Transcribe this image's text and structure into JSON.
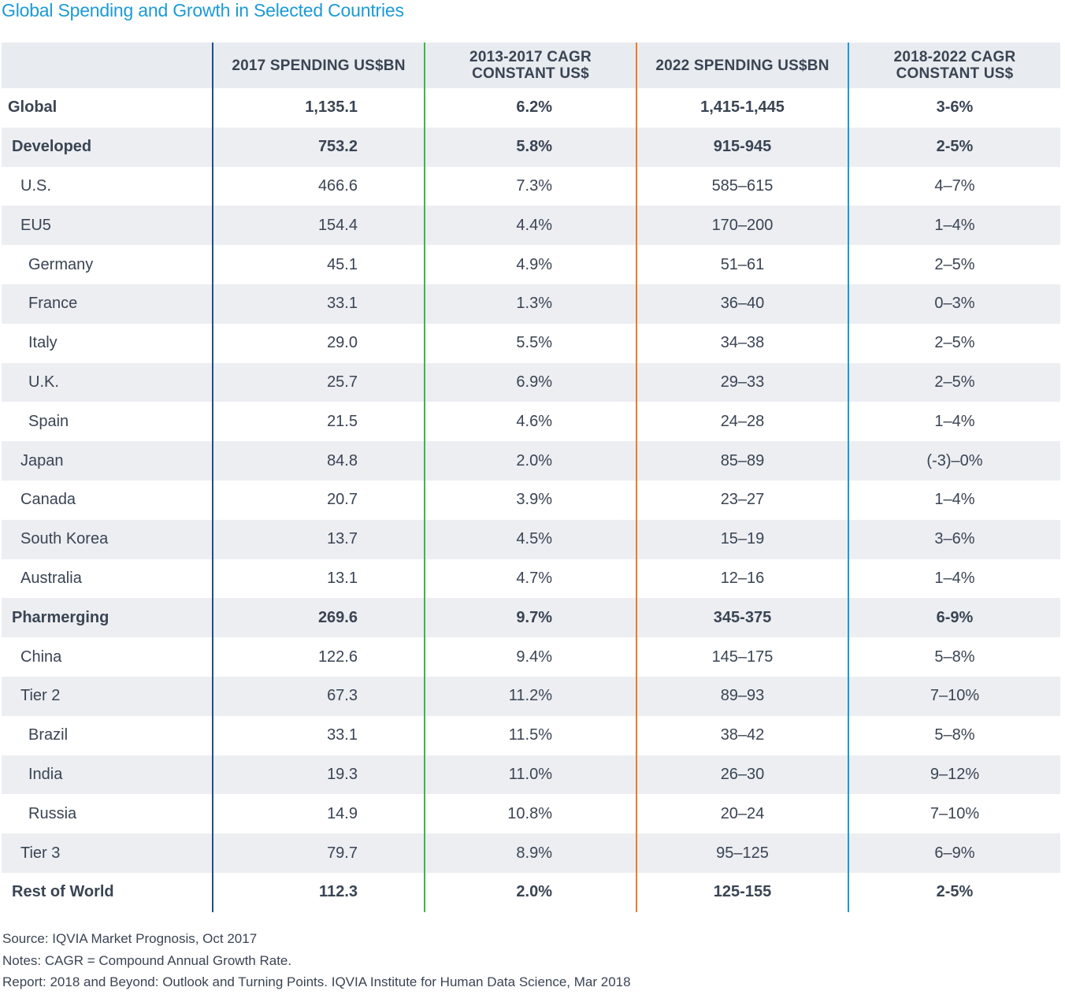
{
  "title": "Global Spending and Growth in Selected Countries",
  "chart_data": {
    "type": "table",
    "title": "Global Spending and Growth in Selected Countries",
    "columns": [
      "",
      "2017 SPENDING US$BN",
      "2013-2017 CAGR CONSTANT US$",
      "2022 SPENDING US$BN",
      "2018-2022 CAGR CONSTANT US$"
    ],
    "header": {
      "col1": "2017 SPENDING US$BN",
      "col2_line1": "2013-2017 CAGR",
      "col2_line2": "CONSTANT US$",
      "col3": "2022 SPENDING US$BN",
      "col4_line1": "2018-2022 CAGR",
      "col4_line2": "CONSTANT US$"
    },
    "rows": [
      {
        "label": "Global",
        "level": 0,
        "bold": true,
        "v1": "1,135.1",
        "v2": "6.2%",
        "v3": "1,415-1,445",
        "v4": "3-6%"
      },
      {
        "label": "Developed",
        "level": 1,
        "bold": true,
        "v1": "753.2",
        "v2": "5.8%",
        "v3": "915-945",
        "v4": "2-5%"
      },
      {
        "label": "U.S.",
        "level": 2,
        "bold": false,
        "v1": "466.6",
        "v2": "7.3%",
        "v3": "585–615",
        "v4": "4–7%"
      },
      {
        "label": "EU5",
        "level": 2,
        "bold": false,
        "v1": "154.4",
        "v2": "4.4%",
        "v3": "170–200",
        "v4": "1–4%"
      },
      {
        "label": "Germany",
        "level": 3,
        "bold": false,
        "v1": "45.1",
        "v2": "4.9%",
        "v3": "51–61",
        "v4": "2–5%"
      },
      {
        "label": "France",
        "level": 3,
        "bold": false,
        "v1": "33.1",
        "v2": "1.3%",
        "v3": "36–40",
        "v4": "0–3%"
      },
      {
        "label": "Italy",
        "level": 3,
        "bold": false,
        "v1": "29.0",
        "v2": "5.5%",
        "v3": "34–38",
        "v4": "2–5%"
      },
      {
        "label": "U.K.",
        "level": 3,
        "bold": false,
        "v1": "25.7",
        "v2": "6.9%",
        "v3": "29–33",
        "v4": "2–5%"
      },
      {
        "label": "Spain",
        "level": 3,
        "bold": false,
        "v1": "21.5",
        "v2": "4.6%",
        "v3": "24–28",
        "v4": "1–4%"
      },
      {
        "label": "Japan",
        "level": 2,
        "bold": false,
        "v1": "84.8",
        "v2": "2.0%",
        "v3": "85–89",
        "v4": "(-3)–0%"
      },
      {
        "label": "Canada",
        "level": 2,
        "bold": false,
        "v1": "20.7",
        "v2": "3.9%",
        "v3": "23–27",
        "v4": "1–4%"
      },
      {
        "label": "South Korea",
        "level": 2,
        "bold": false,
        "v1": "13.7",
        "v2": "4.5%",
        "v3": "15–19",
        "v4": "3–6%"
      },
      {
        "label": "Australia",
        "level": 2,
        "bold": false,
        "v1": "13.1",
        "v2": "4.7%",
        "v3": "12–16",
        "v4": "1–4%"
      },
      {
        "label": "Pharmerging",
        "level": 1,
        "bold": true,
        "v1": "269.6",
        "v2": "9.7%",
        "v3": "345-375",
        "v4": "6-9%"
      },
      {
        "label": "China",
        "level": 2,
        "bold": false,
        "v1": "122.6",
        "v2": "9.4%",
        "v3": "145–175",
        "v4": "5–8%"
      },
      {
        "label": "Tier 2",
        "level": 2,
        "bold": false,
        "v1": "67.3",
        "v2": "11.2%",
        "v3": "89–93",
        "v4": "7–10%"
      },
      {
        "label": "Brazil",
        "level": 3,
        "bold": false,
        "v1": "33.1",
        "v2": "11.5%",
        "v3": "38–42",
        "v4": "5–8%"
      },
      {
        "label": "India",
        "level": 3,
        "bold": false,
        "v1": "19.3",
        "v2": "11.0%",
        "v3": "26–30",
        "v4": "9–12%"
      },
      {
        "label": "Russia",
        "level": 3,
        "bold": false,
        "v1": "14.9",
        "v2": "10.8%",
        "v3": "20–24",
        "v4": "7–10%"
      },
      {
        "label": "Tier 3",
        "level": 2,
        "bold": false,
        "v1": "79.7",
        "v2": "8.9%",
        "v3": "95–125",
        "v4": "6–9%"
      },
      {
        "label": "Rest of World",
        "level": 1,
        "bold": true,
        "v1": "112.3",
        "v2": "2.0%",
        "v3": "125-155",
        "v4": "2-5%"
      }
    ]
  },
  "colors": {
    "title": "#1c9ad6",
    "divider1": "#1f4f8a",
    "divider2": "#3fb54a",
    "divider3": "#ea7c2c",
    "divider4": "#1c9ad6",
    "header_bg": "#e8ebef",
    "stripe_bg": "#eceef2"
  },
  "footnotes": {
    "source": "Source: IQVIA Market Prognosis, Oct 2017",
    "notes": "Notes: CAGR = Compound Annual Growth Rate.",
    "report": "Report: 2018 and Beyond: Outlook and Turning Points. IQVIA Institute for Human Data Science, Mar 2018"
  }
}
